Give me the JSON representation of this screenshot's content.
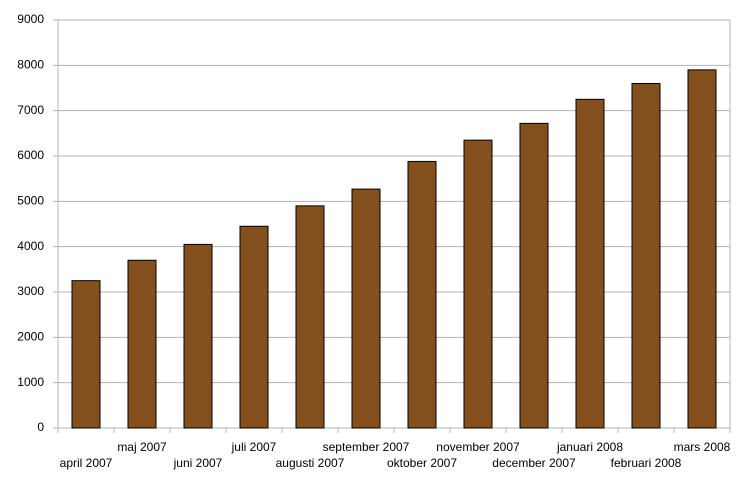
{
  "chart_data": {
    "type": "bar",
    "categories": [
      "april 2007",
      "maj 2007",
      "juni 2007",
      "juli 2007",
      "augusti 2007",
      "september 2007",
      "oktober 2007",
      "november 2007",
      "december 2007",
      "januari 2008",
      "februari 2008",
      "mars 2008"
    ],
    "values": [
      3250,
      3700,
      4050,
      4450,
      4900,
      5270,
      5880,
      6350,
      6720,
      7250,
      7600,
      7900
    ],
    "color": "#84511e",
    "ylim": [
      0,
      9000
    ],
    "yticks": [
      0,
      1000,
      2000,
      3000,
      4000,
      5000,
      6000,
      7000,
      8000,
      9000
    ],
    "grid": true
  }
}
